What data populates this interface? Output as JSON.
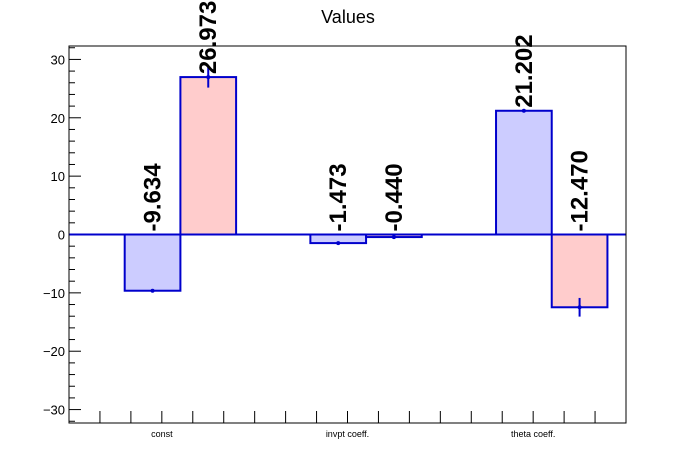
{
  "chart_data": {
    "type": "bar",
    "title": "Values",
    "categories": [
      "const",
      "invpt coeff.",
      "theta coeff."
    ],
    "series": [
      {
        "values": [
          -9.634,
          -1.473,
          21.202
        ],
        "errors": [
          0,
          0,
          0
        ],
        "fill": "#ccccff",
        "stroke": "#0000cc"
      },
      {
        "values": [
          26.973,
          -0.44,
          -12.47
        ],
        "errors": [
          1.8,
          0.3,
          1.6
        ],
        "fill": "#ffcccc",
        "stroke": "#0000cc"
      }
    ],
    "data_labels": [
      [
        "-9.634",
        "-1.473",
        "21.202"
      ],
      [
        "26.973",
        "-0.440",
        "-12.470"
      ]
    ],
    "ylim": [
      -32.3,
      32.3
    ],
    "yticks": [
      -30,
      -20,
      -10,
      0,
      10,
      20,
      30
    ],
    "ytick_labels": [
      "−30",
      "−20",
      "−10",
      "0",
      "10",
      "20",
      "30"
    ],
    "xlabel": "",
    "ylabel": "",
    "grid": false,
    "legend": "none",
    "zero_line_color": "#0000cc"
  }
}
